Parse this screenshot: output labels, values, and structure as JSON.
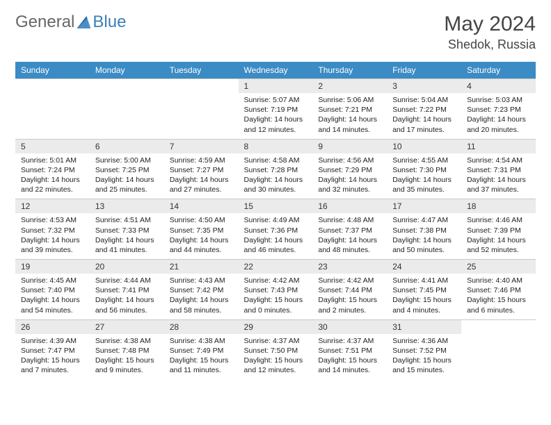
{
  "brand": {
    "part1": "General",
    "part2": "Blue"
  },
  "title": "May 2024",
  "location": "Shedok, Russia",
  "header_bg": "#3b8bc4",
  "header_fg": "#ffffff",
  "daynum_bg": "#ebebeb",
  "border_color": "#c8c8c8",
  "weekdays": [
    "Sunday",
    "Monday",
    "Tuesday",
    "Wednesday",
    "Thursday",
    "Friday",
    "Saturday"
  ],
  "weeks": [
    [
      null,
      null,
      null,
      {
        "n": "1",
        "sr": "5:07 AM",
        "ss": "7:19 PM",
        "dl": "14 hours and 12 minutes."
      },
      {
        "n": "2",
        "sr": "5:06 AM",
        "ss": "7:21 PM",
        "dl": "14 hours and 14 minutes."
      },
      {
        "n": "3",
        "sr": "5:04 AM",
        "ss": "7:22 PM",
        "dl": "14 hours and 17 minutes."
      },
      {
        "n": "4",
        "sr": "5:03 AM",
        "ss": "7:23 PM",
        "dl": "14 hours and 20 minutes."
      }
    ],
    [
      {
        "n": "5",
        "sr": "5:01 AM",
        "ss": "7:24 PM",
        "dl": "14 hours and 22 minutes."
      },
      {
        "n": "6",
        "sr": "5:00 AM",
        "ss": "7:25 PM",
        "dl": "14 hours and 25 minutes."
      },
      {
        "n": "7",
        "sr": "4:59 AM",
        "ss": "7:27 PM",
        "dl": "14 hours and 27 minutes."
      },
      {
        "n": "8",
        "sr": "4:58 AM",
        "ss": "7:28 PM",
        "dl": "14 hours and 30 minutes."
      },
      {
        "n": "9",
        "sr": "4:56 AM",
        "ss": "7:29 PM",
        "dl": "14 hours and 32 minutes."
      },
      {
        "n": "10",
        "sr": "4:55 AM",
        "ss": "7:30 PM",
        "dl": "14 hours and 35 minutes."
      },
      {
        "n": "11",
        "sr": "4:54 AM",
        "ss": "7:31 PM",
        "dl": "14 hours and 37 minutes."
      }
    ],
    [
      {
        "n": "12",
        "sr": "4:53 AM",
        "ss": "7:32 PM",
        "dl": "14 hours and 39 minutes."
      },
      {
        "n": "13",
        "sr": "4:51 AM",
        "ss": "7:33 PM",
        "dl": "14 hours and 41 minutes."
      },
      {
        "n": "14",
        "sr": "4:50 AM",
        "ss": "7:35 PM",
        "dl": "14 hours and 44 minutes."
      },
      {
        "n": "15",
        "sr": "4:49 AM",
        "ss": "7:36 PM",
        "dl": "14 hours and 46 minutes."
      },
      {
        "n": "16",
        "sr": "4:48 AM",
        "ss": "7:37 PM",
        "dl": "14 hours and 48 minutes."
      },
      {
        "n": "17",
        "sr": "4:47 AM",
        "ss": "7:38 PM",
        "dl": "14 hours and 50 minutes."
      },
      {
        "n": "18",
        "sr": "4:46 AM",
        "ss": "7:39 PM",
        "dl": "14 hours and 52 minutes."
      }
    ],
    [
      {
        "n": "19",
        "sr": "4:45 AM",
        "ss": "7:40 PM",
        "dl": "14 hours and 54 minutes."
      },
      {
        "n": "20",
        "sr": "4:44 AM",
        "ss": "7:41 PM",
        "dl": "14 hours and 56 minutes."
      },
      {
        "n": "21",
        "sr": "4:43 AM",
        "ss": "7:42 PM",
        "dl": "14 hours and 58 minutes."
      },
      {
        "n": "22",
        "sr": "4:42 AM",
        "ss": "7:43 PM",
        "dl": "15 hours and 0 minutes."
      },
      {
        "n": "23",
        "sr": "4:42 AM",
        "ss": "7:44 PM",
        "dl": "15 hours and 2 minutes."
      },
      {
        "n": "24",
        "sr": "4:41 AM",
        "ss": "7:45 PM",
        "dl": "15 hours and 4 minutes."
      },
      {
        "n": "25",
        "sr": "4:40 AM",
        "ss": "7:46 PM",
        "dl": "15 hours and 6 minutes."
      }
    ],
    [
      {
        "n": "26",
        "sr": "4:39 AM",
        "ss": "7:47 PM",
        "dl": "15 hours and 7 minutes."
      },
      {
        "n": "27",
        "sr": "4:38 AM",
        "ss": "7:48 PM",
        "dl": "15 hours and 9 minutes."
      },
      {
        "n": "28",
        "sr": "4:38 AM",
        "ss": "7:49 PM",
        "dl": "15 hours and 11 minutes."
      },
      {
        "n": "29",
        "sr": "4:37 AM",
        "ss": "7:50 PM",
        "dl": "15 hours and 12 minutes."
      },
      {
        "n": "30",
        "sr": "4:37 AM",
        "ss": "7:51 PM",
        "dl": "15 hours and 14 minutes."
      },
      {
        "n": "31",
        "sr": "4:36 AM",
        "ss": "7:52 PM",
        "dl": "15 hours and 15 minutes."
      },
      null
    ]
  ],
  "labels": {
    "sunrise": "Sunrise: ",
    "sunset": "Sunset: ",
    "daylight": "Daylight: "
  }
}
